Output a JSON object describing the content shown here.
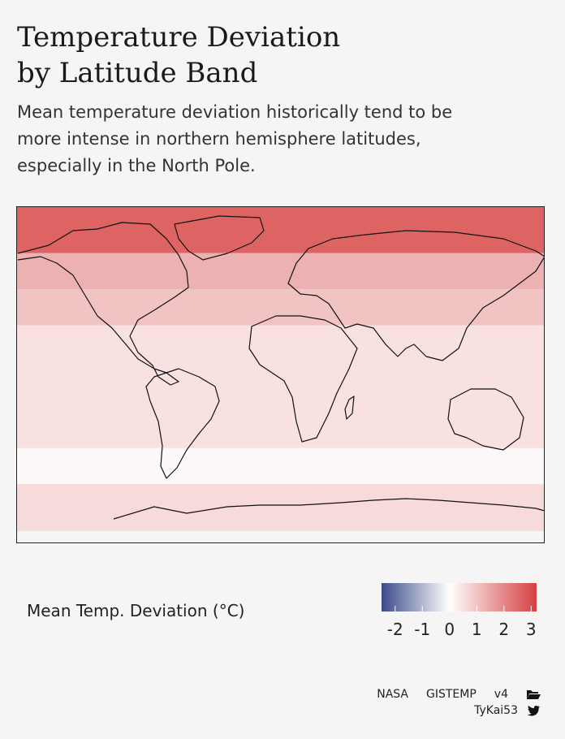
{
  "title_lines": [
    "Temperature Deviation",
    "by Latitude Band"
  ],
  "subtitle_lines": [
    "Mean temperature deviation historically tend to be",
    "more intense in northern hemisphere latitudes,",
    "especially in the North Pole."
  ],
  "legend": {
    "title": "Mean Temp. Deviation (°C)",
    "ticks": [
      "-2",
      "-1",
      "0",
      "1",
      "2",
      "3"
    ],
    "range": [
      -2.5,
      3.2
    ],
    "low_color": "#3a4a8a",
    "mid_color": "#ffffff",
    "high_color": "#d64040"
  },
  "credits": {
    "source": [
      "NASA",
      "GISTEMP",
      "v4"
    ],
    "source_icon": "folder-open-icon",
    "author": "TyKai53",
    "author_icon": "twitter-icon"
  },
  "chart_data": {
    "type": "heatmap",
    "title": "Temperature Deviation by Latitude Band",
    "description_axis": "latitude",
    "bands": [
      {
        "lat_min": 64,
        "lat_max": 90,
        "value": 2.6
      },
      {
        "lat_min": 44,
        "lat_max": 64,
        "value": 1.3
      },
      {
        "lat_min": 24,
        "lat_max": 44,
        "value": 1.0
      },
      {
        "lat_min": 0,
        "lat_max": 24,
        "value": 0.5
      },
      {
        "lat_min": -24,
        "lat_max": 0,
        "value": 0.5
      },
      {
        "lat_min": -44,
        "lat_max": -24,
        "value": 0.5
      },
      {
        "lat_min": -64,
        "lat_max": -44,
        "value": 0.1
      },
      {
        "lat_min": -90,
        "lat_max": -64,
        "value": 0.6
      }
    ],
    "ylim": [
      -90,
      90
    ],
    "xlim": [
      -180,
      180
    ]
  }
}
